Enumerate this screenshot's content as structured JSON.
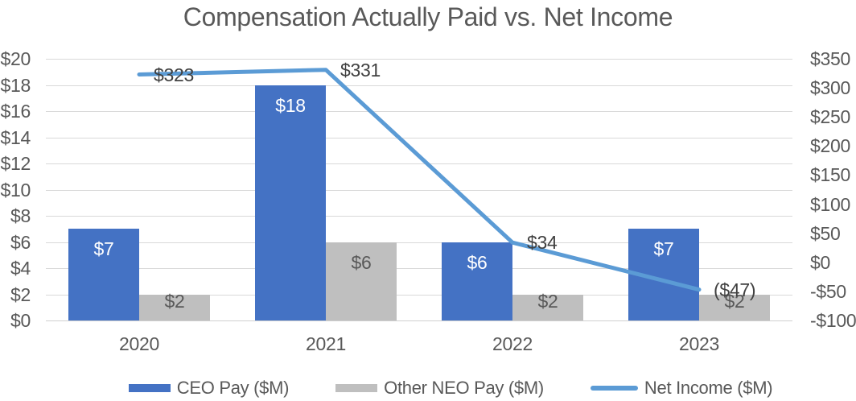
{
  "title": "Compensation Actually Paid vs. Net Income",
  "colors": {
    "ceo_bar": "#4472C4",
    "neo_bar": "#BFBFBF",
    "net_income_line": "#5B9BD5",
    "gridline": "#D9D9D9",
    "text": "#595959",
    "bar_label_on_blue": "#FFFFFF",
    "bar_label_on_gray": "#595959",
    "line_label": "#404040"
  },
  "chart_data": {
    "type": "bar",
    "subtype": "grouped-bars-with-line-combo",
    "title": "Compensation Actually Paid vs. Net Income",
    "categories": [
      "2020",
      "2021",
      "2022",
      "2023"
    ],
    "series": [
      {
        "name": "CEO Pay ($M)",
        "kind": "bar",
        "axis": "left",
        "color": "#4472C4",
        "values": [
          7,
          18,
          6,
          7
        ],
        "value_labels": [
          "$7",
          "$18",
          "$6",
          "$7"
        ],
        "label_color": "#FFFFFF"
      },
      {
        "name": "Other NEO Pay ($M)",
        "kind": "bar",
        "axis": "left",
        "color": "#BFBFBF",
        "values": [
          2,
          6,
          2,
          2
        ],
        "value_labels": [
          "$2",
          "$6",
          "$2",
          "$2"
        ],
        "label_color": "#595959"
      },
      {
        "name": "Net Income ($M)",
        "kind": "line",
        "axis": "right",
        "color": "#5B9BD5",
        "values": [
          323,
          331,
          34,
          -47
        ],
        "value_labels": [
          "$323",
          "$331",
          "$34",
          "($47)"
        ],
        "label_color": "#404040"
      }
    ],
    "left_axis": {
      "min": 0,
      "max": 20,
      "step": 2,
      "tick_labels": [
        "$20",
        "$18",
        "$16",
        "$14",
        "$12",
        "$10",
        "$8",
        "$6",
        "$4",
        "$2",
        "$0"
      ]
    },
    "right_axis": {
      "min": -100,
      "max": 350,
      "step": 50,
      "tick_labels": [
        "$350",
        "$300",
        "$250",
        "$200",
        "$150",
        "$100",
        "$50",
        "$0",
        "-$50",
        "-$100"
      ]
    },
    "grid": true,
    "legend_position": "bottom",
    "legend": [
      {
        "label": "CEO Pay ($M)",
        "swatch": "bar",
        "color": "#4472C4"
      },
      {
        "label": "Other NEO Pay ($M)",
        "swatch": "bar",
        "color": "#BFBFBF"
      },
      {
        "label": "Net Income ($M)",
        "swatch": "line",
        "color": "#5B9BD5"
      }
    ]
  }
}
